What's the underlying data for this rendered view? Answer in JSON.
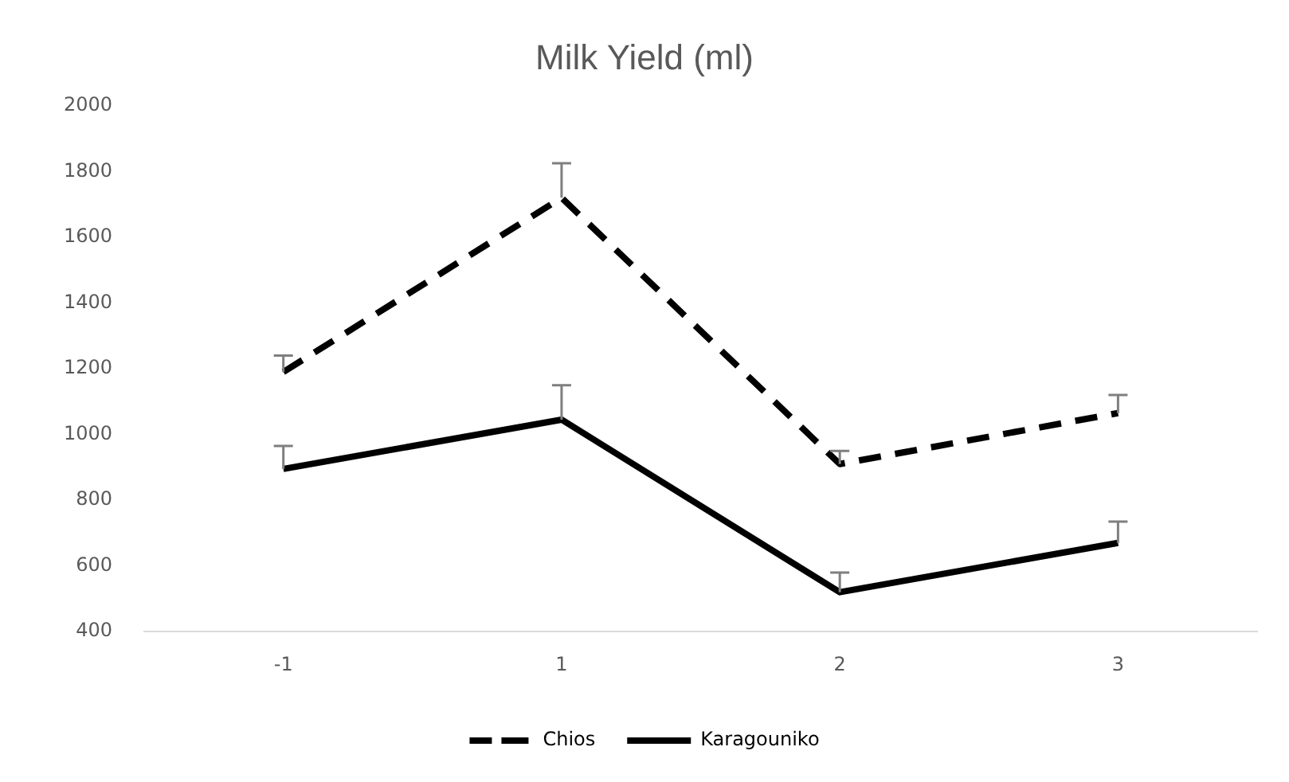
{
  "chart_data": {
    "type": "line",
    "title": "Milk Yield (ml)",
    "categories": [
      "-1",
      "1",
      "2",
      "3"
    ],
    "series": [
      {
        "name": "Chios",
        "color": "#000000",
        "line_style": "dashed",
        "values": [
          1190,
          1720,
          910,
          1065
        ],
        "errors": [
          [
            1190,
            1240
          ],
          [
            1720,
            1825
          ],
          [
            910,
            950
          ],
          [
            1065,
            1120
          ]
        ]
      },
      {
        "name": "Karagouniko",
        "color": "#000000",
        "line_style": "solid",
        "values": [
          895,
          1045,
          520,
          670
        ],
        "errors": [
          [
            895,
            965
          ],
          [
            1045,
            1150
          ],
          [
            520,
            580
          ],
          [
            670,
            735
          ]
        ]
      }
    ],
    "ylim": [
      400,
      2000
    ],
    "yticks": [
      400,
      600,
      800,
      1000,
      1200,
      1400,
      1600,
      1800,
      2000
    ],
    "grid": false,
    "legend": "bottom",
    "marker": "none"
  }
}
